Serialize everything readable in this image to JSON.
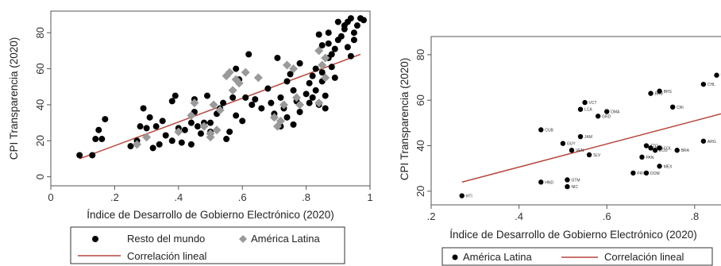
{
  "chart_data": [
    {
      "type": "scatter",
      "xlabel": "Índice de Desarrollo de Gobierno Electrónico (2020)",
      "ylabel": "CPI Transparencia (2020)",
      "xlim": [
        0,
        1
      ],
      "ylim": [
        -5,
        92
      ],
      "xticks": [
        "0",
        ".2",
        ".4",
        ".6",
        ".8",
        "1"
      ],
      "yticks": [
        "0",
        "20",
        "40",
        "60",
        "80"
      ],
      "xtick_values": [
        0,
        0.2,
        0.4,
        0.6,
        0.8,
        1
      ],
      "ytick_values": [
        0,
        20,
        40,
        60,
        80
      ],
      "grid": false,
      "legend_position": "bottom",
      "legend": [
        "Resto del mundo",
        "América Latina",
        "Correlación lineal"
      ],
      "colors": {
        "resto": "#000000",
        "latam": "#9a9a9a",
        "line": "#b5473f"
      },
      "series": [
        {
          "name": "Resto del mundo",
          "marker": "circle",
          "points": [
            [
              0.09,
              12
            ],
            [
              0.13,
              12
            ],
            [
              0.14,
              21
            ],
            [
              0.15,
              26
            ],
            [
              0.16,
              21
            ],
            [
              0.17,
              32
            ],
            [
              0.25,
              17
            ],
            [
              0.27,
              20
            ],
            [
              0.28,
              28
            ],
            [
              0.29,
              38
            ],
            [
              0.3,
              27
            ],
            [
              0.31,
              33
            ],
            [
              0.32,
              16
            ],
            [
              0.33,
              28
            ],
            [
              0.34,
              18
            ],
            [
              0.35,
              31
            ],
            [
              0.36,
              23
            ],
            [
              0.38,
              20
            ],
            [
              0.38,
              42
            ],
            [
              0.39,
              45
            ],
            [
              0.4,
              27
            ],
            [
              0.41,
              19
            ],
            [
              0.42,
              26
            ],
            [
              0.44,
              30
            ],
            [
              0.44,
              18
            ],
            [
              0.45,
              36
            ],
            [
              0.45,
              43
            ],
            [
              0.46,
              28
            ],
            [
              0.47,
              24
            ],
            [
              0.48,
              30
            ],
            [
              0.49,
              45
            ],
            [
              0.5,
              30
            ],
            [
              0.5,
              25
            ],
            [
              0.52,
              35
            ],
            [
              0.53,
              38
            ],
            [
              0.54,
              41
            ],
            [
              0.55,
              21
            ],
            [
              0.56,
              25
            ],
            [
              0.57,
              44
            ],
            [
              0.58,
              34
            ],
            [
              0.58,
              60
            ],
            [
              0.59,
              54
            ],
            [
              0.6,
              31
            ],
            [
              0.61,
              44
            ],
            [
              0.62,
              68
            ],
            [
              0.63,
              40
            ],
            [
              0.64,
              43
            ],
            [
              0.66,
              38
            ],
            [
              0.68,
              49
            ],
            [
              0.69,
              41
            ],
            [
              0.7,
              35
            ],
            [
              0.7,
              33
            ],
            [
              0.71,
              66
            ],
            [
              0.72,
              44
            ],
            [
              0.72,
              28
            ],
            [
              0.73,
              38
            ],
            [
              0.74,
              53
            ],
            [
              0.74,
              33
            ],
            [
              0.75,
              57
            ],
            [
              0.76,
              29
            ],
            [
              0.76,
              48
            ],
            [
              0.77,
              42
            ],
            [
              0.78,
              36
            ],
            [
              0.78,
              63
            ],
            [
              0.8,
              46
            ],
            [
              0.81,
              41
            ],
            [
              0.81,
              52
            ],
            [
              0.82,
              44
            ],
            [
              0.82,
              56
            ],
            [
              0.83,
              60
            ],
            [
              0.83,
              48
            ],
            [
              0.84,
              79
            ],
            [
              0.84,
              40
            ],
            [
              0.85,
              73
            ],
            [
              0.85,
              58
            ],
            [
              0.85,
              53
            ],
            [
              0.86,
              45
            ],
            [
              0.86,
              38
            ],
            [
              0.87,
              66
            ],
            [
              0.87,
              80
            ],
            [
              0.87,
              74
            ],
            [
              0.88,
              68
            ],
            [
              0.88,
              61
            ],
            [
              0.89,
              71
            ],
            [
              0.89,
              55
            ],
            [
              0.9,
              76
            ],
            [
              0.9,
              86
            ],
            [
              0.91,
              78
            ],
            [
              0.92,
              84
            ],
            [
              0.92,
              82
            ],
            [
              0.93,
              72
            ],
            [
              0.93,
              86
            ],
            [
              0.94,
              88
            ],
            [
              0.94,
              67
            ],
            [
              0.95,
              80
            ],
            [
              0.95,
              76
            ],
            [
              0.96,
              84
            ],
            [
              0.97,
              88
            ],
            [
              0.98,
              87
            ]
          ]
        },
        {
          "name": "América Latina",
          "marker": "diamond",
          "points": [
            [
              0.27,
              18
            ],
            [
              0.3,
              22
            ],
            [
              0.4,
              25
            ],
            [
              0.44,
              34
            ],
            [
              0.45,
              41
            ],
            [
              0.48,
              28
            ],
            [
              0.5,
              24
            ],
            [
              0.5,
              22
            ],
            [
              0.51,
              40
            ],
            [
              0.52,
              26
            ],
            [
              0.53,
              37
            ],
            [
              0.55,
              56
            ],
            [
              0.56,
              58
            ],
            [
              0.57,
              48
            ],
            [
              0.58,
              54
            ],
            [
              0.59,
              52
            ],
            [
              0.61,
              58
            ],
            [
              0.65,
              55
            ],
            [
              0.7,
              33
            ],
            [
              0.71,
              28
            ],
            [
              0.72,
              31
            ],
            [
              0.73,
              40
            ],
            [
              0.74,
              62
            ],
            [
              0.76,
              60
            ],
            [
              0.77,
              44
            ],
            [
              0.78,
              40
            ],
            [
              0.84,
              41
            ],
            [
              0.84,
              70
            ],
            [
              0.85,
              62
            ],
            [
              0.86,
              55
            ],
            [
              0.86,
              66
            ]
          ]
        }
      ],
      "fit_line": {
        "name": "Correlación lineal",
        "x": [
          0.09,
          0.97
        ],
        "y": [
          10,
          68
        ]
      }
    },
    {
      "type": "scatter",
      "xlabel": "Índice de Desarrollo de Gobierno Electrónico (2020)",
      "ylabel": "CPI Transparencia (2020)",
      "xlim": [
        0.2,
        0.86
      ],
      "ylim": [
        14,
        88
      ],
      "xticks": [
        ".2",
        ".4",
        ".6",
        ".8"
      ],
      "yticks": [
        "20",
        "40",
        "60",
        "80"
      ],
      "xtick_values": [
        0.2,
        0.4,
        0.6,
        0.8
      ],
      "ytick_values": [
        20,
        40,
        60,
        80
      ],
      "grid": false,
      "legend_position": "bottom",
      "legend": [
        "América Latina",
        "Correlación lineal"
      ],
      "colors": {
        "points": "#000000",
        "line": "#b5473f"
      },
      "series": [
        {
          "name": "América Latina",
          "marker": "circle",
          "points": [
            {
              "x": 0.27,
              "y": 18,
              "label": "HTI"
            },
            {
              "x": 0.45,
              "y": 24,
              "label": "HND"
            },
            {
              "x": 0.51,
              "y": 22,
              "label": "NIC"
            },
            {
              "x": 0.51,
              "y": 25,
              "label": "GTM"
            },
            {
              "x": 0.45,
              "y": 47,
              "label": "CUB"
            },
            {
              "x": 0.5,
              "y": 41,
              "label": "GUY"
            },
            {
              "x": 0.52,
              "y": 38,
              "label": "VEN"
            },
            {
              "x": 0.54,
              "y": 44,
              "label": "JAM"
            },
            {
              "x": 0.56,
              "y": 36,
              "label": "SLV"
            },
            {
              "x": 0.55,
              "y": 59,
              "label": "VCT"
            },
            {
              "x": 0.54,
              "y": 56,
              "label": "LCA"
            },
            {
              "x": 0.58,
              "y": 53,
              "label": "GRD"
            },
            {
              "x": 0.6,
              "y": 55,
              "label": "DMA"
            },
            {
              "x": 0.7,
              "y": 63,
              "label": "BRB"
            },
            {
              "x": 0.72,
              "y": 64,
              "label": "BHS"
            },
            {
              "x": 0.75,
              "y": 57,
              "label": "CRI"
            },
            {
              "x": 0.66,
              "y": 28,
              "label": "PRY"
            },
            {
              "x": 0.69,
              "y": 28,
              "label": "DOM"
            },
            {
              "x": 0.68,
              "y": 35,
              "label": "PAN"
            },
            {
              "x": 0.72,
              "y": 31,
              "label": "MEX"
            },
            {
              "x": 0.69,
              "y": 40,
              "label": "TTO"
            },
            {
              "x": 0.7,
              "y": 39,
              "label": "PER"
            },
            {
              "x": 0.71,
              "y": 38,
              "label": "ECU"
            },
            {
              "x": 0.72,
              "y": 39,
              "label": "COL"
            },
            {
              "x": 0.76,
              "y": 38,
              "label": "BRA"
            },
            {
              "x": 0.82,
              "y": 42,
              "label": "ARG"
            },
            {
              "x": 0.82,
              "y": 67,
              "label": "CHL"
            },
            {
              "x": 0.85,
              "y": 71,
              "label": "URY"
            }
          ]
        }
      ],
      "fit_line": {
        "name": "Correlación lineal",
        "x": [
          0.27,
          0.86
        ],
        "y": [
          24,
          54
        ]
      }
    }
  ]
}
